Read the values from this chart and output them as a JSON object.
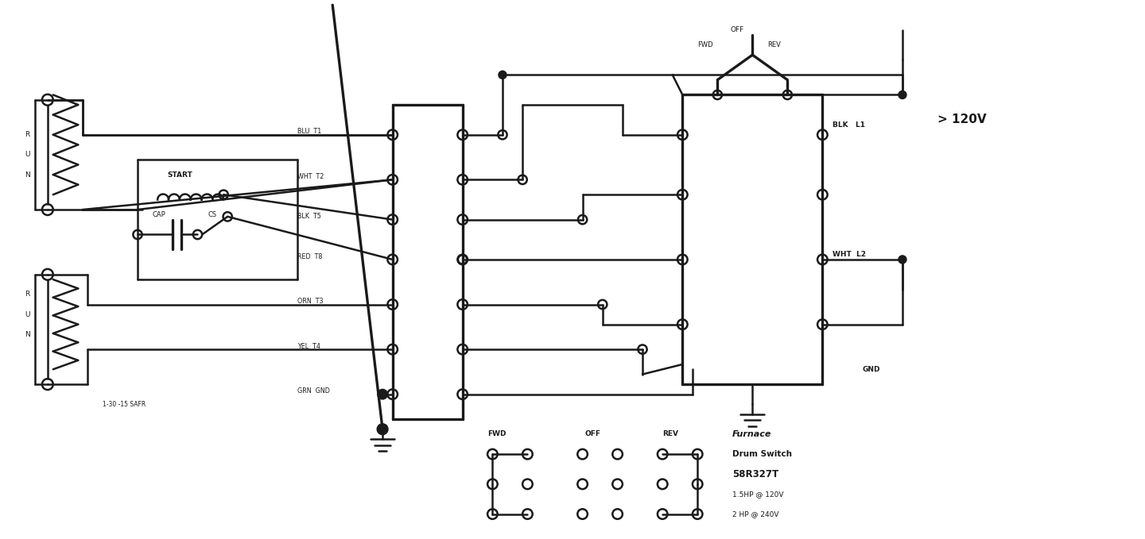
{
  "bg_color": "#ffffff",
  "line_color": "#1a1a1a",
  "lw": 1.8,
  "lw_thick": 2.4,
  "fig_width": 14.4,
  "fig_height": 6.79,
  "dpi": 100,
  "xlim": [
    0,
    110
  ],
  "ylim": [
    0,
    54
  ]
}
